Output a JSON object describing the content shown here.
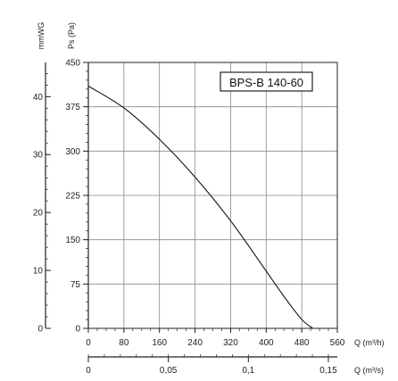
{
  "chart_data": {
    "type": "line",
    "model": "BPS-B 140-60",
    "x": {
      "label": "Q (m³/h)",
      "ticks": [
        "0",
        "80",
        "160",
        "240",
        "320",
        "400",
        "480",
        "560"
      ],
      "range": [
        0,
        560
      ]
    },
    "x2": {
      "label": "Q (m³/s)",
      "ticks": [
        "0",
        "0,05",
        "0,1",
        "0,15"
      ],
      "range": [
        0,
        0.1556
      ]
    },
    "y": {
      "label": "Ps (Pa)",
      "ticks": [
        "0",
        "75",
        "150",
        "225",
        "300",
        "375",
        "450"
      ],
      "range": [
        0,
        450
      ]
    },
    "y2": {
      "label": "mmWG",
      "ticks": [
        "0",
        "10",
        "20",
        "30",
        "40"
      ],
      "range": [
        0,
        45.9
      ]
    },
    "grid": true,
    "series": [
      {
        "x": [
          0,
          80,
          160,
          240,
          320,
          400,
          440,
          480,
          505
        ],
        "y": [
          410,
          373,
          320,
          256,
          182,
          97,
          54,
          15,
          0
        ]
      }
    ]
  }
}
